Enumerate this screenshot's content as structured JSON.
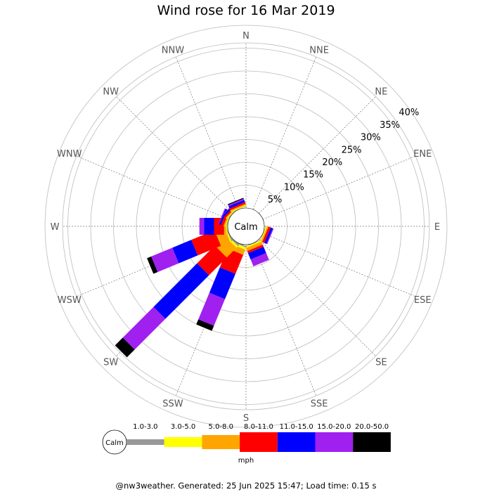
{
  "title": "Wind rose for 16 Mar 2019",
  "footer": "@nw3weather. Generated: 25 Jun 2025 15:47; Load time: 0.15 s",
  "chart_data": {
    "type": "wind-rose",
    "title": "Wind rose for 16 Mar 2019",
    "directions": [
      "N",
      "NNE",
      "NE",
      "ENE",
      "E",
      "ESE",
      "SE",
      "SSE",
      "S",
      "SSW",
      "SW",
      "WSW",
      "W",
      "WNW",
      "NW",
      "NNW"
    ],
    "ring_labels": [
      "5%",
      "10%",
      "15%",
      "20%",
      "25%",
      "30%",
      "35%",
      "40%"
    ],
    "ring_values": [
      5,
      10,
      15,
      20,
      25,
      30,
      35,
      40
    ],
    "center_label": "Calm",
    "units": "mph",
    "bins": [
      {
        "label": "1.0-3.0",
        "color": "#999999"
      },
      {
        "label": "3.0-5.0",
        "color": "#ffff00"
      },
      {
        "label": "5.0-8.0",
        "color": "#ffa500"
      },
      {
        "label": "8.0-11.0",
        "color": "#ff0000"
      },
      {
        "label": "11.0-15.0",
        "color": "#0000ff"
      },
      {
        "label": "15.0-20.0",
        "color": "#a020f0"
      },
      {
        "label": "20.0-50.0",
        "color": "#000000"
      }
    ],
    "series_percent": {
      "N": [
        0,
        0,
        0,
        0,
        0,
        0,
        0
      ],
      "NNE": [
        0,
        0,
        0,
        0,
        0,
        0,
        0
      ],
      "NE": [
        0,
        0,
        0,
        0,
        0,
        0,
        0
      ],
      "ENE": [
        0,
        0,
        0,
        0,
        0,
        0,
        0
      ],
      "E": [
        0,
        0,
        0,
        0,
        0,
        0,
        0
      ],
      "ESE": [
        0.1,
        0.2,
        0.3,
        0.5,
        0.5,
        0.2,
        0
      ],
      "SE": [
        0,
        0,
        0,
        0,
        0,
        0,
        0
      ],
      "SSE": [
        0.1,
        0.3,
        0.7,
        0.5,
        1.5,
        1.6,
        0
      ],
      "S": [
        0,
        0,
        0,
        0,
        0,
        0,
        0
      ],
      "SSW": [
        0.3,
        0.5,
        1.2,
        4.5,
        6.0,
        6.3,
        1.2
      ],
      "SW": [
        0.3,
        0.5,
        3.0,
        5.5,
        13.5,
        9.5,
        2.4
      ],
      "WSW": [
        0.2,
        0.3,
        2.2,
        5.5,
        4.5,
        5.0,
        1.0
      ],
      "W": [
        0.1,
        0.2,
        0.5,
        2.2,
        2.2,
        1.0,
        0
      ],
      "WNW": [
        0.1,
        0.2,
        0.3,
        0.6,
        0.4,
        0.2,
        0
      ],
      "NW": [
        0.1,
        0.2,
        0.2,
        0.4,
        0.4,
        0.1,
        0
      ],
      "NNW": [
        0.1,
        0.2,
        0.3,
        0.4,
        0.5,
        0.3,
        0.2
      ]
    }
  }
}
